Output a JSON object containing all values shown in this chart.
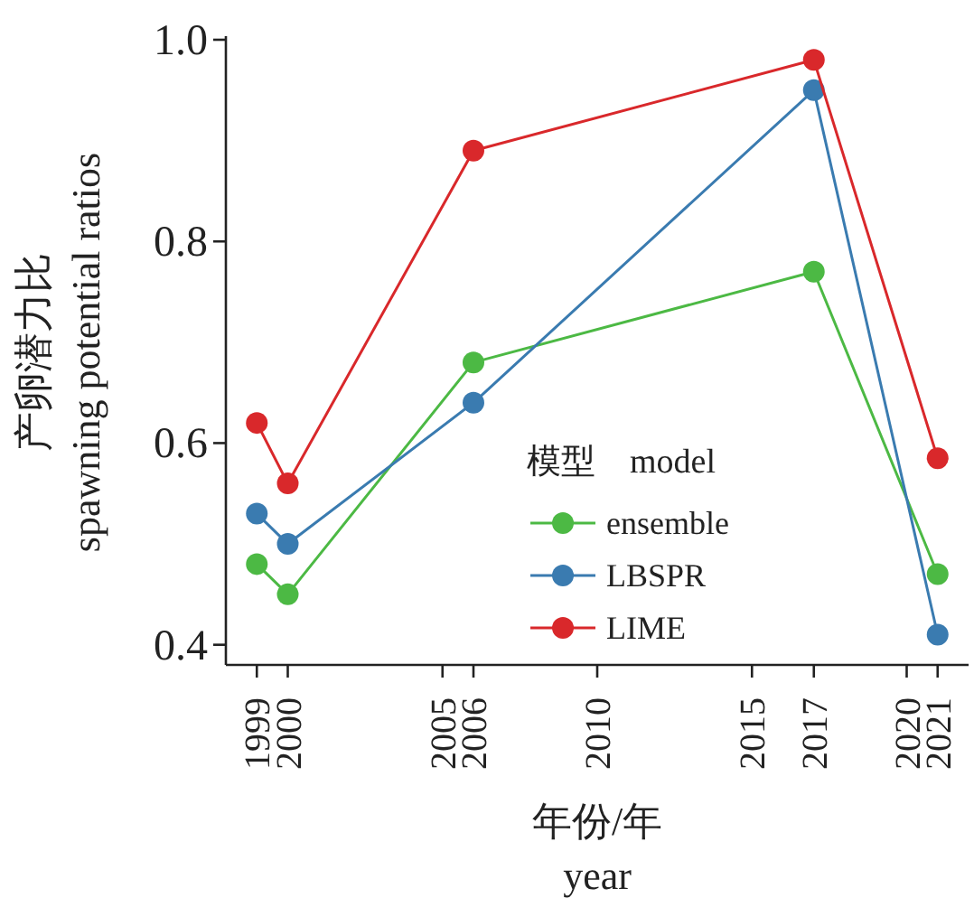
{
  "chart_data": {
    "type": "line",
    "xlabel": "年份/年\nyear",
    "ylabel": "产卵潜力比\nspawning potential ratios",
    "legend_title": "模型　model",
    "x": [
      1999,
      2000,
      2006,
      2017,
      2021
    ],
    "series": [
      {
        "name": "ensemble",
        "color": "#4cb944",
        "values": [
          0.48,
          0.45,
          0.68,
          0.77,
          0.47
        ]
      },
      {
        "name": "LBSPR",
        "color": "#3a7bb0",
        "values": [
          0.53,
          0.5,
          0.64,
          0.95,
          0.41
        ]
      },
      {
        "name": "LIME",
        "color": "#d9282b",
        "values": [
          0.62,
          0.56,
          0.89,
          0.98,
          0.585
        ]
      }
    ],
    "xlim": [
      1998,
      2022
    ],
    "xticks": [
      1999,
      2000,
      2005,
      2006,
      2010,
      2015,
      2017,
      2020,
      2021
    ],
    "ylim": [
      0.38,
      1.0
    ],
    "yticks": [
      {
        "value": 0.4,
        "label": "0.4"
      },
      {
        "value": 0.6,
        "label": "0.6"
      },
      {
        "value": 0.8,
        "label": "0.8"
      },
      {
        "value": 1.0,
        "label": "1.0"
      }
    ],
    "grid": false,
    "legend": "bottom",
    "marker": "circle",
    "line_style": "solid"
  }
}
